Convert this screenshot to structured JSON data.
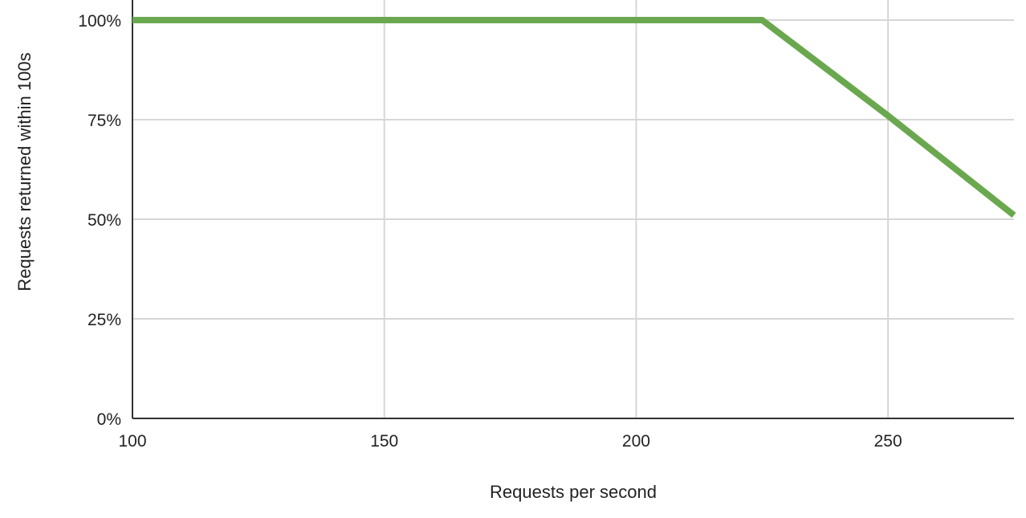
{
  "chart_data": {
    "type": "line",
    "title": "",
    "xlabel": "Requests per second",
    "ylabel": "Requests returned within 100s",
    "xlim": [
      100,
      275
    ],
    "ylim": [
      0,
      100
    ],
    "x_ticks": [
      100,
      150,
      200,
      250
    ],
    "x_tick_labels": [
      "100",
      "150",
      "200",
      "250"
    ],
    "y_ticks": [
      0,
      25,
      50,
      75,
      100
    ],
    "y_tick_labels": [
      "0%",
      "25%",
      "50%",
      "75%",
      "100%"
    ],
    "grid": true,
    "legend": "none",
    "series": [
      {
        "x": [
          100,
          225,
          250,
          275
        ],
        "values": [
          100,
          100,
          76,
          51
        ],
        "color": "#6aa84f"
      }
    ]
  }
}
